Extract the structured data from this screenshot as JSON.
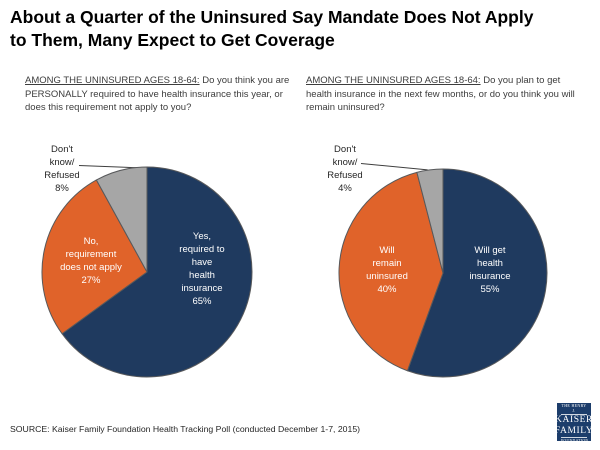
{
  "title": "About a Quarter of the Uninsured Say Mandate Does Not Apply\nto Them, Many Expect to Get Coverage",
  "source": "SOURCE: Kaiser Family Foundation Health Tracking Poll (conducted December 1-7, 2015)",
  "logo": {
    "line1": "THE HENRY J.",
    "line2": "KAISER",
    "line3": "FAMILY",
    "line4": "FOUNDATION",
    "bg_color": "#1c3d6b"
  },
  "colors": {
    "navy": "#1f3a5f",
    "orange": "#e0632a",
    "gray": "#a6a6a6",
    "slice_border": "#58595b"
  },
  "questions": [
    {
      "lead": "AMONG THE UNINSURED AGES 18-64:",
      "rest": " Do you think you are PERSONALLY required to have health insurance this year, or does this requirement not apply to you?"
    },
    {
      "lead": "AMONG THE UNINSURED AGES 18-64:",
      "rest": " Do you plan to get health insurance in the next few months, or do you think you will remain uninsured?"
    }
  ],
  "chart_data": [
    {
      "type": "pie",
      "title": "AMONG THE UNINSURED AGES 18-64: Do you think you are PERSONALLY required to have health insurance this year, or does this requirement not apply to you?",
      "categories": [
        "Yes, required to have health insurance",
        "No, requirement does not apply",
        "Don't know/Refused"
      ],
      "values": [
        65,
        27,
        8
      ],
      "start_angle_deg": 0,
      "direction": "clockwise",
      "slices": [
        {
          "id": "yes-required",
          "label": "Yes, required to have health insurance",
          "value": 65,
          "color": "#1f3a5f",
          "display": "Yes,\nrequired to\nhave\nhealth\ninsurance\n65%"
        },
        {
          "id": "no-not-apply",
          "label": "No, requirement does not apply",
          "value": 27,
          "color": "#e0632a",
          "display": "No,\nrequirement\ndoes not apply\n27%"
        },
        {
          "id": "dont-know",
          "label": "Don't know/Refused",
          "value": 8,
          "color": "#a6a6a6",
          "display": "Don't\nknow/\nRefused\n8%"
        }
      ]
    },
    {
      "type": "pie",
      "title": "AMONG THE UNINSURED AGES 18-64: Do you plan to get health insurance in the next few months, or do you think you will remain uninsured?",
      "categories": [
        "Will get health insurance",
        "Will remain uninsured",
        "Don't know/Refused"
      ],
      "values": [
        55,
        40,
        4
      ],
      "start_angle_deg": 0,
      "direction": "clockwise",
      "slices": [
        {
          "id": "will-get",
          "label": "Will get health insurance",
          "value": 55,
          "color": "#1f3a5f",
          "display": "Will get\nhealth\ninsurance\n55%"
        },
        {
          "id": "will-remain",
          "label": "Will remain uninsured",
          "value": 40,
          "color": "#e0632a",
          "display": "Will\nremain\nuninsured\n40%"
        },
        {
          "id": "dont-know",
          "label": "Don't know/Refused",
          "value": 4,
          "color": "#a6a6a6",
          "display": "Don't\nknow/\nRefused\n4%"
        }
      ]
    }
  ]
}
